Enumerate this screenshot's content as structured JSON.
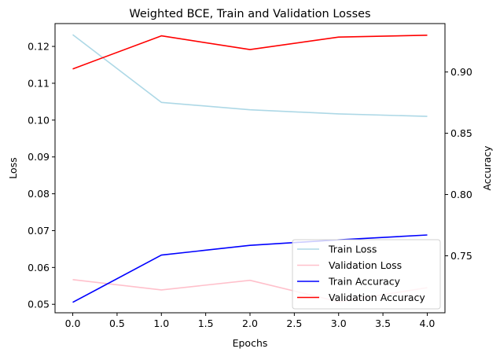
{
  "chart_data": {
    "type": "line",
    "title": "Weighted BCE, Train and Validation Losses",
    "xlabel": "Epochs",
    "ylabel_left": "Loss",
    "ylabel_right": "Accuracy",
    "x": [
      0,
      1,
      2,
      3,
      4
    ],
    "xlim": [
      -0.2,
      4.2
    ],
    "xticks": [
      "0.0",
      "0.5",
      "1.0",
      "1.5",
      "2.0",
      "2.5",
      "3.0",
      "3.5",
      "4.0"
    ],
    "ylim_left": [
      0.0477,
      0.1262
    ],
    "yticks_left": [
      "0.05",
      "0.06",
      "0.07",
      "0.08",
      "0.09",
      "0.10",
      "0.11",
      "0.12"
    ],
    "ylim_right": [
      0.7035,
      0.9395
    ],
    "yticks_right": [
      "0.75",
      "0.80",
      "0.85",
      "0.90"
    ],
    "grid": false,
    "legend_position": "lower-right",
    "series": [
      {
        "name": "Train Loss",
        "axis": "left",
        "color": "#add8e6",
        "values": [
          0.1232,
          0.1048,
          0.1028,
          0.1017,
          0.101
        ]
      },
      {
        "name": "Validation Loss",
        "axis": "left",
        "color": "#ffc0cb",
        "values": [
          0.0567,
          0.0539,
          0.0565,
          0.0507,
          0.0545
        ]
      },
      {
        "name": "Train Accuracy",
        "axis": "right",
        "color": "#0000ff",
        "values": [
          0.712,
          0.7506,
          0.7585,
          0.763,
          0.767
        ]
      },
      {
        "name": "Validation Accuracy",
        "axis": "right",
        "color": "#ff0000",
        "values": [
          0.9025,
          0.9295,
          0.9183,
          0.9285,
          0.93
        ]
      }
    ]
  }
}
